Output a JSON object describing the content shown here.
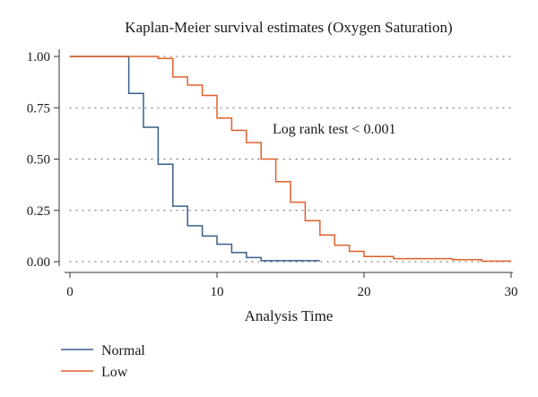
{
  "chart_data": {
    "type": "line",
    "step": true,
    "title": "Kaplan-Meier survival estimates (Oxygen Saturation)",
    "xlabel": "Analysis Time",
    "ylabel": "",
    "xlim": [
      0,
      30
    ],
    "ylim": [
      0,
      1
    ],
    "x_ticks": [
      "0",
      "10",
      "20",
      "30"
    ],
    "y_ticks": [
      "0.00",
      "0.25",
      "0.50",
      "0.75",
      "1.00"
    ],
    "grid": "horizontal-dotted",
    "legend": "bottom-left",
    "annotation": "Log rank test < 0.001",
    "series": [
      {
        "name": "Normal",
        "color": "#3a5f8a",
        "x": [
          0,
          4,
          5,
          6,
          7,
          8,
          9,
          10,
          11,
          12,
          13,
          17
        ],
        "y": [
          1.0,
          0.82,
          0.655,
          0.475,
          0.27,
          0.175,
          0.125,
          0.085,
          0.045,
          0.02,
          0.005,
          0.005
        ]
      },
      {
        "name": "Low",
        "color": "#e0602a",
        "x": [
          0,
          6,
          7,
          8,
          9,
          10,
          11,
          12,
          13,
          14,
          15,
          16,
          17,
          18,
          19,
          20,
          22,
          26,
          28,
          30
        ],
        "y": [
          1.0,
          0.99,
          0.9,
          0.86,
          0.81,
          0.7,
          0.64,
          0.58,
          0.5,
          0.39,
          0.29,
          0.2,
          0.13,
          0.08,
          0.05,
          0.025,
          0.015,
          0.01,
          0.003,
          0.003
        ]
      }
    ]
  }
}
